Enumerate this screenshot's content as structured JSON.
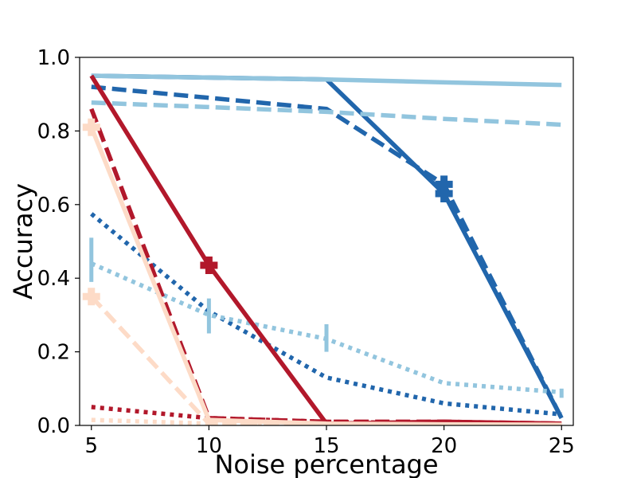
{
  "chart_data": {
    "type": "line",
    "title": "",
    "xlabel": "Noise percentage",
    "ylabel": "Accuracy",
    "xlim": [
      4.5,
      25.5
    ],
    "ylim": [
      0.0,
      1.0
    ],
    "x_ticks": [
      "5",
      "10",
      "15",
      "20",
      "25"
    ],
    "y_ticks": [
      "0.0",
      "0.2",
      "0.4",
      "0.6",
      "0.8",
      "1.0"
    ],
    "grid": false,
    "legend": "none",
    "x": [
      5,
      10,
      15,
      20,
      25
    ],
    "series": [
      {
        "color": "#2166ac",
        "style": "solid",
        "values": [
          0.95,
          0.945,
          0.94,
          0.63,
          0.02
        ]
      },
      {
        "color": "#2166ac",
        "style": "dashed",
        "values": [
          0.92,
          0.89,
          0.86,
          0.655,
          0.02
        ]
      },
      {
        "color": "#2166ac",
        "style": "dotted",
        "values": [
          0.575,
          0.31,
          0.13,
          0.06,
          0.03
        ]
      },
      {
        "color": "#92c5de",
        "style": "solid",
        "values": [
          0.95,
          0.945,
          0.94,
          0.932,
          0.925
        ]
      },
      {
        "color": "#92c5de",
        "style": "dashed",
        "values": [
          0.877,
          0.865,
          0.852,
          0.833,
          0.817
        ]
      },
      {
        "color": "#92c5de",
        "style": "dotted",
        "values": [
          0.44,
          0.3,
          0.235,
          0.115,
          0.09
        ]
      },
      {
        "color": "#b2182b",
        "style": "solid",
        "values": [
          0.95,
          0.435,
          0.005,
          0.01,
          0.005
        ]
      },
      {
        "color": "#b2182b",
        "style": "dashed",
        "values": [
          0.86,
          0.02,
          0.01,
          0.01,
          0.005
        ]
      },
      {
        "color": "#b2182b",
        "style": "dotted",
        "values": [
          0.05,
          0.02,
          0.01,
          0.005,
          0.003
        ]
      },
      {
        "color": "#fddbc7",
        "style": "solid",
        "values": [
          0.81,
          0.015,
          0.005,
          0.003,
          0.002
        ]
      },
      {
        "color": "#fddbc7",
        "style": "dashed",
        "values": [
          0.35,
          0.005,
          0.003,
          0.002,
          0.001
        ]
      },
      {
        "color": "#fddbc7",
        "style": "dotted",
        "values": [
          0.015,
          0.005,
          0.003,
          0.002,
          0.001
        ]
      }
    ],
    "error_bars": [
      {
        "color": "#92c5de",
        "x": 5,
        "low": 0.39,
        "high": 0.51
      },
      {
        "color": "#92c5de",
        "x": 10,
        "low": 0.25,
        "high": 0.345
      },
      {
        "color": "#92c5de",
        "x": 15,
        "low": 0.2,
        "high": 0.275
      },
      {
        "color": "#92c5de",
        "x": 25,
        "low": 0.075,
        "high": 0.1
      }
    ],
    "markers": [
      {
        "color": "#2166ac",
        "x": 20,
        "y": 0.63
      },
      {
        "color": "#2166ac",
        "x": 20,
        "y": 0.655
      },
      {
        "color": "#b2182b",
        "x": 10,
        "y": 0.435
      },
      {
        "color": "#fddbc7",
        "x": 5,
        "y": 0.81
      },
      {
        "color": "#fddbc7",
        "x": 5,
        "y": 0.35
      }
    ]
  }
}
